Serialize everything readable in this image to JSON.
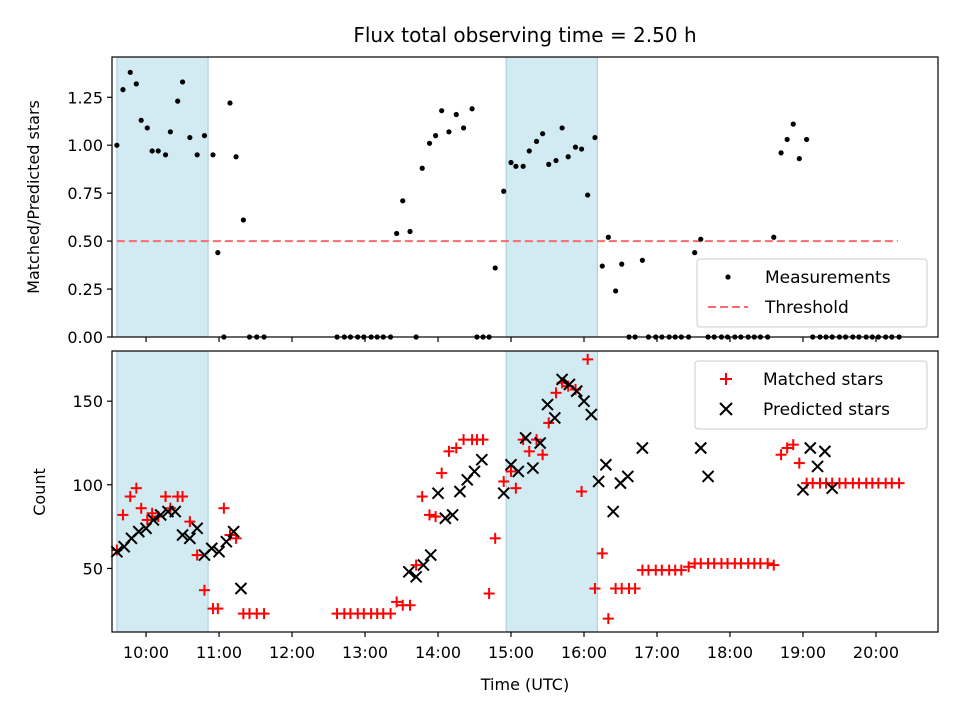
{
  "figure": {
    "title": "Flux total observing time = 2.50 h"
  },
  "colors": {
    "shade": "#add8e6",
    "threshold": "#ff6b6b",
    "matched": "#ff0000",
    "predicted": "#000000",
    "measurement": "#000000"
  },
  "chart_data": [
    {
      "type": "scatter",
      "panel": "top",
      "ylabel": "Matched/Predicted stars",
      "xlabel": "",
      "xlim": [
        "09:32",
        "20:51"
      ],
      "ylim": [
        0,
        1.46
      ],
      "yticks": [
        "0.00",
        "0.25",
        "0.50",
        "0.75",
        "1.00",
        "1.25"
      ],
      "ytick_values": [
        0,
        0.25,
        0.5,
        0.75,
        1.0,
        1.25
      ],
      "grid": false,
      "legend_position": "lower-right",
      "shaded_intervals": [
        [
          "09:36",
          "10:51"
        ],
        [
          "14:56",
          "16:11"
        ]
      ],
      "series": [
        {
          "name": "Measurements",
          "marker": "dot",
          "x": [
            "09:36",
            "09:41",
            "09:47",
            "09:52",
            "09:56",
            "10:01",
            "10:05",
            "10:10",
            "10:16",
            "10:20",
            "10:26",
            "10:30",
            "10:36",
            "10:42",
            "10:48",
            "10:55",
            "10:59",
            "11:04",
            "11:09",
            "11:14",
            "11:20",
            "11:25",
            "11:31",
            "11:37",
            "12:37",
            "12:43",
            "12:48",
            "12:54",
            "12:59",
            "13:05",
            "13:10",
            "13:15",
            "13:21",
            "13:26",
            "13:31",
            "13:37",
            "13:42",
            "13:47",
            "13:53",
            "13:58",
            "14:03",
            "14:09",
            "14:15",
            "14:21",
            "14:28",
            "14:32",
            "14:37",
            "14:42",
            "14:47",
            "14:54",
            "15:00",
            "15:04",
            "15:10",
            "15:15",
            "15:21",
            "15:26",
            "15:31",
            "15:37",
            "15:42",
            "15:47",
            "15:53",
            "15:58",
            "16:03",
            "16:09",
            "16:15",
            "16:20",
            "16:26",
            "16:31",
            "16:37",
            "16:42",
            "16:48",
            "16:53",
            "16:59",
            "17:04",
            "17:10",
            "17:15",
            "17:20",
            "17:26",
            "17:31",
            "17:36",
            "17:42",
            "17:47",
            "17:53",
            "17:58",
            "18:04",
            "18:09",
            "18:15",
            "18:20",
            "18:25",
            "18:31",
            "18:36",
            "18:42",
            "18:47",
            "18:52",
            "18:57",
            "19:03",
            "19:08",
            "19:14",
            "19:19",
            "19:24",
            "19:30",
            "19:35",
            "19:41",
            "19:46",
            "19:52",
            "19:57",
            "20:02",
            "20:08",
            "20:13",
            "20:19"
          ],
          "y": [
            1.0,
            1.29,
            1.38,
            1.32,
            1.13,
            1.09,
            0.97,
            0.97,
            0.95,
            1.07,
            1.23,
            1.33,
            1.04,
            0.95,
            1.05,
            0.95,
            0.44,
            0.0,
            1.22,
            0.94,
            0.61,
            0.0,
            0.0,
            0.0,
            0.0,
            0.0,
            0.0,
            0.0,
            0.0,
            0.0,
            0.0,
            0.0,
            0.0,
            0.54,
            0.71,
            0.55,
            0.0,
            0.88,
            1.01,
            1.05,
            1.18,
            1.07,
            1.16,
            1.09,
            1.19,
            0.0,
            0.0,
            0.0,
            0.36,
            0.76,
            0.91,
            0.89,
            0.89,
            0.97,
            1.02,
            1.06,
            0.9,
            0.92,
            1.09,
            0.94,
            0.99,
            0.98,
            0.74,
            1.04,
            0.37,
            0.52,
            0.24,
            0.38,
            0.0,
            0.0,
            0.4,
            0.0,
            0.0,
            0.0,
            0.0,
            0.0,
            0.0,
            0.0,
            0.44,
            0.51,
            0.0,
            0.0,
            0.0,
            0.0,
            0.0,
            0.0,
            0.0,
            0.0,
            0.0,
            0.0,
            0.52,
            0.96,
            1.03,
            1.11,
            0.93,
            1.03,
            0.0,
            0.0,
            0.0,
            0.0,
            0.0,
            0.0,
            0.0,
            0.0,
            0.0,
            0.0,
            0.0,
            0.0,
            0.0,
            0.0
          ]
        },
        {
          "name": "Threshold",
          "marker": "dashed-line",
          "x": [
            "09:36",
            "20:18"
          ],
          "y": [
            0.5,
            0.5
          ]
        }
      ]
    },
    {
      "type": "scatter",
      "panel": "bottom",
      "ylabel": "Count",
      "xlabel": "Time (UTC)",
      "xlim": [
        "09:32",
        "20:51"
      ],
      "ylim": [
        12,
        180
      ],
      "yticks": [
        "50",
        "100",
        "150"
      ],
      "ytick_values": [
        50,
        100,
        150
      ],
      "xticks": [
        "10:00",
        "11:00",
        "12:00",
        "13:00",
        "14:00",
        "15:00",
        "16:00",
        "17:00",
        "18:00",
        "19:00",
        "20:00"
      ],
      "grid": false,
      "legend_position": "upper-right",
      "shaded_intervals": [
        [
          "09:36",
          "10:51"
        ],
        [
          "14:56",
          "16:11"
        ]
      ],
      "series": [
        {
          "name": "Matched stars",
          "marker": "plus",
          "x": [
            "09:36",
            "09:41",
            "09:47",
            "09:52",
            "09:56",
            "10:01",
            "10:05",
            "10:10",
            "10:16",
            "10:20",
            "10:26",
            "10:30",
            "10:36",
            "10:42",
            "10:48",
            "10:55",
            "10:59",
            "11:04",
            "11:09",
            "11:14",
            "11:20",
            "11:25",
            "11:31",
            "11:37",
            "12:37",
            "12:43",
            "12:48",
            "12:54",
            "12:59",
            "13:05",
            "13:10",
            "13:15",
            "13:21",
            "13:26",
            "13:31",
            "13:37",
            "13:42",
            "13:47",
            "13:53",
            "13:58",
            "14:03",
            "14:09",
            "14:15",
            "14:21",
            "14:28",
            "14:32",
            "14:37",
            "14:42",
            "14:47",
            "14:54",
            "15:00",
            "15:04",
            "15:10",
            "15:15",
            "15:21",
            "15:26",
            "15:31",
            "15:37",
            "15:42",
            "15:47",
            "15:53",
            "15:58",
            "16:03",
            "16:09",
            "16:15",
            "16:20",
            "16:26",
            "16:31",
            "16:37",
            "16:42",
            "16:48",
            "16:53",
            "16:59",
            "17:04",
            "17:10",
            "17:15",
            "17:20",
            "17:26",
            "17:31",
            "17:36",
            "17:42",
            "17:47",
            "17:53",
            "17:58",
            "18:04",
            "18:09",
            "18:15",
            "18:20",
            "18:25",
            "18:31",
            "18:36",
            "18:42",
            "18:47",
            "18:52",
            "18:57",
            "19:03",
            "19:08",
            "19:14",
            "19:19",
            "19:24",
            "19:30",
            "19:35",
            "19:41",
            "19:46",
            "19:52",
            "19:57",
            "20:02",
            "20:08",
            "20:13",
            "20:19"
          ],
          "y": [
            61,
            82,
            93,
            98,
            86,
            79,
            83,
            81,
            93,
            86,
            93,
            93,
            78,
            58,
            37,
            26,
            26,
            86,
            70,
            68,
            23,
            23,
            23,
            23,
            23,
            23,
            23,
            23,
            23,
            23,
            23,
            23,
            23,
            30,
            28,
            28,
            52,
            93,
            82,
            81,
            107,
            120,
            122,
            127,
            127,
            127,
            127,
            35,
            68,
            102,
            108,
            98,
            127,
            120,
            127,
            118,
            137,
            155,
            161,
            159,
            157,
            96,
            175,
            38,
            59,
            20,
            38,
            38,
            38,
            38,
            49,
            49,
            49,
            49,
            49,
            49,
            49,
            51,
            53,
            53,
            53,
            53,
            53,
            53,
            53,
            53,
            53,
            53,
            53,
            53,
            52,
            118,
            122,
            124,
            113,
            101,
            101,
            101,
            101,
            101,
            101,
            101,
            101,
            101,
            101,
            101,
            101,
            101,
            101,
            101
          ],
          "note_y": "Matched stars"
        },
        {
          "name": "Predicted stars",
          "marker": "x",
          "x": [
            "09:36",
            "09:42",
            "09:48",
            "09:54",
            "10:00",
            "10:06",
            "10:12",
            "10:18",
            "10:24",
            "10:30",
            "10:36",
            "10:42",
            "10:48",
            "10:54",
            "11:00",
            "11:06",
            "11:12",
            "11:18",
            "13:36",
            "13:42",
            "13:48",
            "13:54",
            "14:00",
            "14:06",
            "14:12",
            "14:18",
            "14:24",
            "14:30",
            "14:36",
            "14:54",
            "15:00",
            "15:06",
            "15:12",
            "15:18",
            "15:24",
            "15:30",
            "15:36",
            "15:42",
            "15:48",
            "15:54",
            "16:00",
            "16:06",
            "16:12",
            "16:18",
            "16:24",
            "16:30",
            "16:36",
            "16:48",
            "17:36",
            "17:42",
            "19:00",
            "19:06",
            "19:12",
            "19:18",
            "19:24"
          ],
          "y": [
            60,
            63,
            68,
            72,
            74,
            79,
            82,
            84,
            84,
            70,
            68,
            74,
            58,
            62,
            60,
            66,
            72,
            38,
            48,
            45,
            52,
            58,
            95,
            80,
            82,
            96,
            103,
            108,
            115,
            95,
            112,
            108,
            128,
            110,
            125,
            148,
            140,
            163,
            160,
            156,
            150,
            142,
            102,
            112,
            84,
            101,
            105,
            122,
            122,
            105,
            97,
            122,
            111,
            120,
            98
          ]
        }
      ]
    }
  ]
}
